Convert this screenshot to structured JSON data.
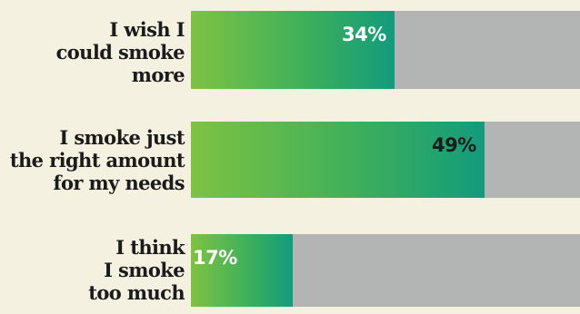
{
  "chart_data": {
    "type": "bar",
    "orientation": "horizontal",
    "categories": [
      "I wish I\ncould smoke\nmore",
      "I smoke just\nthe right amount\nfor my needs",
      "I think\nI smoke\ntoo much"
    ],
    "values": [
      34,
      49,
      17
    ],
    "value_labels": [
      "34%",
      "49%",
      "17%"
    ],
    "xlim": [
      0,
      100
    ],
    "grid": false,
    "legend": "none"
  },
  "colors": {
    "background": "#f5f1e1",
    "track": "#b3b4b4",
    "bar_start": "#7ec242",
    "bar_end": "#129b7c",
    "label_text": "#1b1b1b",
    "value_label_light": "#ffffff",
    "value_label_dark": "#1b1b1b"
  }
}
